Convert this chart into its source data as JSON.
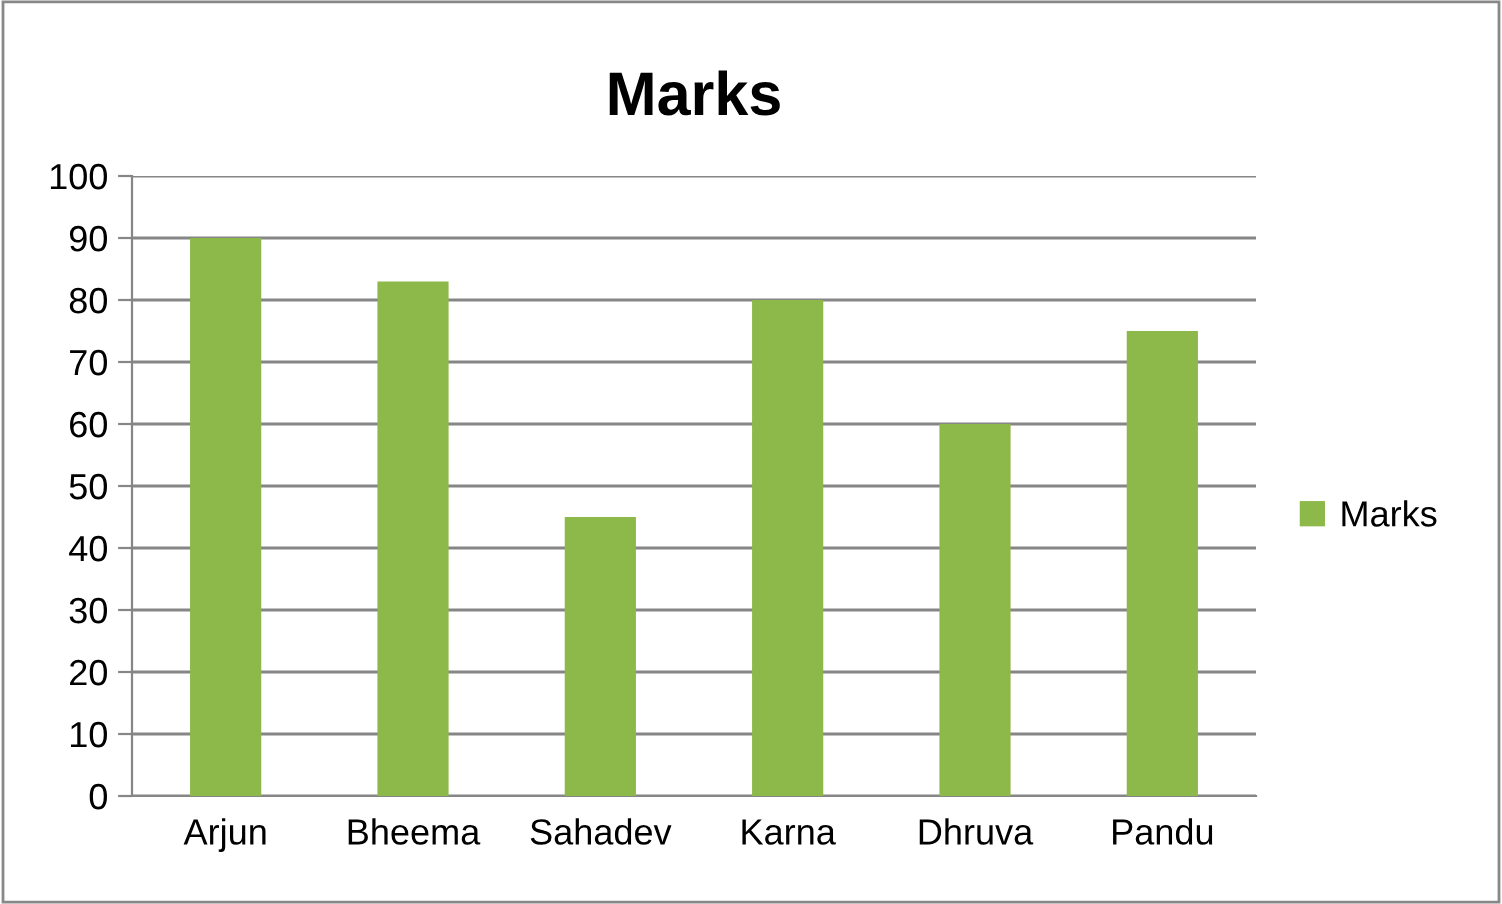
{
  "chart_data": {
    "type": "bar",
    "title": "Marks",
    "categories": [
      "Arjun",
      "Bheema",
      "Sahadev",
      "Karna",
      "Dhruva",
      "Pandu"
    ],
    "series": [
      {
        "name": "Marks",
        "color": "#8db84a",
        "values": [
          90,
          83,
          45,
          80,
          60,
          75
        ]
      }
    ],
    "ylim": [
      0,
      100
    ],
    "yticks": [
      0,
      10,
      20,
      30,
      40,
      50,
      60,
      70,
      80,
      90,
      100
    ],
    "grid": "y",
    "legend": "right"
  }
}
